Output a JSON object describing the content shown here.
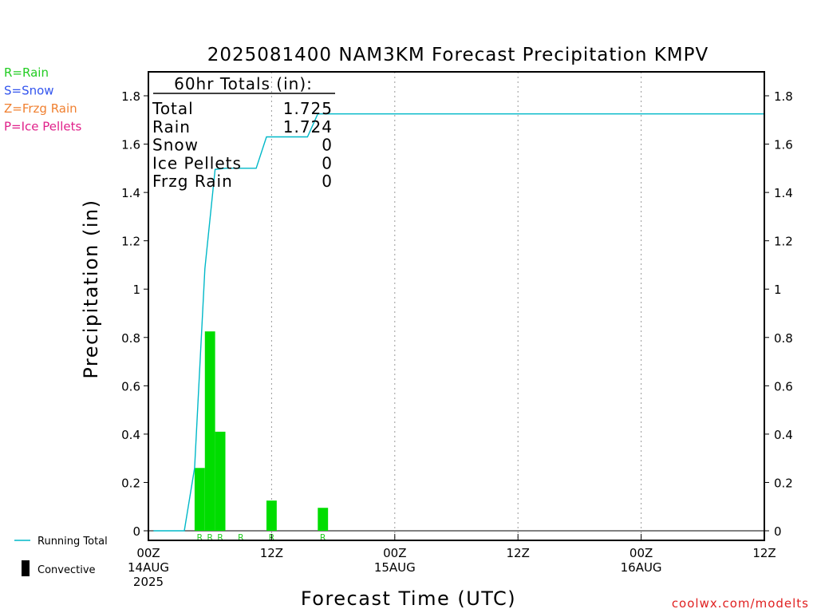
{
  "chart_data": {
    "type": "bar",
    "title": "2025081400 NAM3KM Forecast Precipitation KMPV",
    "xlabel": "Forecast Time (UTC)",
    "ylabel": "Precipitation (in)",
    "ylim": [
      0,
      1.9
    ],
    "xlim_hours": [
      0,
      60
    ],
    "grid": "vertical dotted at 12-hour marks",
    "y_ticks": [
      0,
      0.2,
      0.4,
      0.6,
      0.8,
      1.0,
      1.2,
      1.4,
      1.6,
      1.8
    ],
    "y_tick_labels": [
      "0",
      "0.2",
      "0.4",
      "0.6",
      "0.8",
      "1",
      "1.2",
      "1.4",
      "1.6",
      "1.8"
    ],
    "x_ticks": [
      {
        "hour": 0,
        "lines": [
          "00Z",
          "14AUG",
          "2025"
        ]
      },
      {
        "hour": 12,
        "lines": [
          "12Z"
        ]
      },
      {
        "hour": 24,
        "lines": [
          "00Z",
          "15AUG"
        ]
      },
      {
        "hour": 36,
        "lines": [
          "12Z"
        ]
      },
      {
        "hour": 48,
        "lines": [
          "00Z",
          "16AUG"
        ]
      },
      {
        "hour": 60,
        "lines": [
          "12Z"
        ]
      }
    ],
    "series": [
      {
        "name": "Convective",
        "kind": "bar",
        "color": "#00dd00",
        "bar_width_hours": 1,
        "x": [
          5,
          6,
          7,
          12,
          17
        ],
        "values": [
          0.26,
          0.825,
          0.41,
          0.125,
          0.095
        ]
      },
      {
        "name": "Running Total",
        "kind": "line",
        "color": "#00b8c8",
        "x": [
          0.5,
          3.5,
          4.5,
          5.5,
          6.5,
          7.5,
          10.5,
          11.5,
          15.5,
          16.5,
          60
        ],
        "values": [
          0,
          0,
          0.26,
          1.085,
          1.495,
          1.5,
          1.5,
          1.63,
          1.63,
          1.725,
          1.725
        ]
      }
    ],
    "ptype_markers": [
      {
        "hour": 5,
        "label": "R"
      },
      {
        "hour": 6,
        "label": "R"
      },
      {
        "hour": 7,
        "label": "R"
      },
      {
        "hour": 9,
        "label": "R"
      },
      {
        "hour": 12,
        "label": "R"
      },
      {
        "hour": 17,
        "label": "R"
      }
    ]
  },
  "totals": {
    "header": "60hr Totals (in):",
    "rows": [
      {
        "label": "Total",
        "value": "1.725"
      },
      {
        "label": "Rain",
        "value": "1.724"
      },
      {
        "label": "Snow",
        "value": "0"
      },
      {
        "label": "Ice Pellets",
        "value": "0"
      },
      {
        "label": "Frzg Rain",
        "value": "0"
      }
    ]
  },
  "type_legend": [
    {
      "text": "R=Rain",
      "color": "#22cc22"
    },
    {
      "text": "S=Snow",
      "color": "#3355ee"
    },
    {
      "text": "Z=Frzg Rain",
      "color": "#f08030"
    },
    {
      "text": "P=Ice Pellets",
      "color": "#e0208a"
    }
  ],
  "series_legend": {
    "running_total": "Running Total",
    "convective": "Convective"
  },
  "credit": "coolwx.com/modelts",
  "colors": {
    "bars": "#00dd00",
    "line": "#00b8c8",
    "ptype_label": "#22cc22"
  }
}
